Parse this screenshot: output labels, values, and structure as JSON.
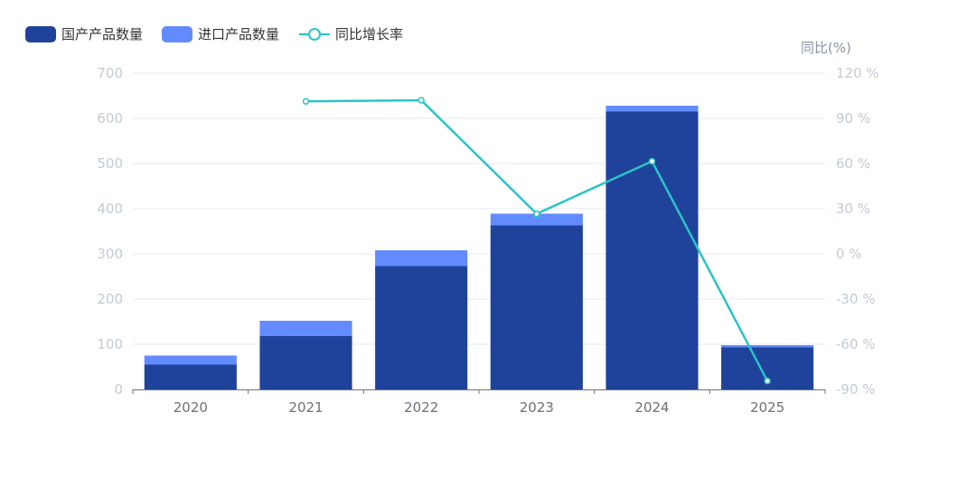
{
  "chart_data": {
    "type": "bar",
    "categories": [
      "2020",
      "2021",
      "2022",
      "2023",
      "2024",
      "2025"
    ],
    "series": [
      {
        "name": "国产产品数量",
        "type": "bar",
        "stack": "total",
        "color": "#1f439a",
        "values": [
          55,
          118,
          273,
          363,
          615,
          93
        ]
      },
      {
        "name": "进口产品数量",
        "type": "bar",
        "stack": "total",
        "color": "#628bff",
        "values": [
          20,
          34,
          35,
          26,
          13,
          5
        ]
      },
      {
        "name": "同比增长率",
        "type": "line",
        "axis": "right",
        "color": "#2ac4c8",
        "values": [
          null,
          101.3,
          102.0,
          26.6,
          61.5,
          -84.4
        ]
      }
    ],
    "left_axis": {
      "ylim": [
        0,
        700
      ],
      "ticks": [
        "0",
        "100",
        "200",
        "300",
        "400",
        "500",
        "600",
        "700"
      ]
    },
    "right_axis": {
      "label": "同比(%)",
      "ylim": [
        -90,
        120
      ],
      "ticks": [
        "-90 %",
        "-60 %",
        "-30 %",
        "0 %",
        "30 %",
        "60 %",
        "90 %",
        "120 %"
      ]
    },
    "legend": {
      "position": "top-left",
      "items": [
        "国产产品数量",
        "进口产品数量",
        "同比增长率"
      ]
    },
    "grid": true
  }
}
